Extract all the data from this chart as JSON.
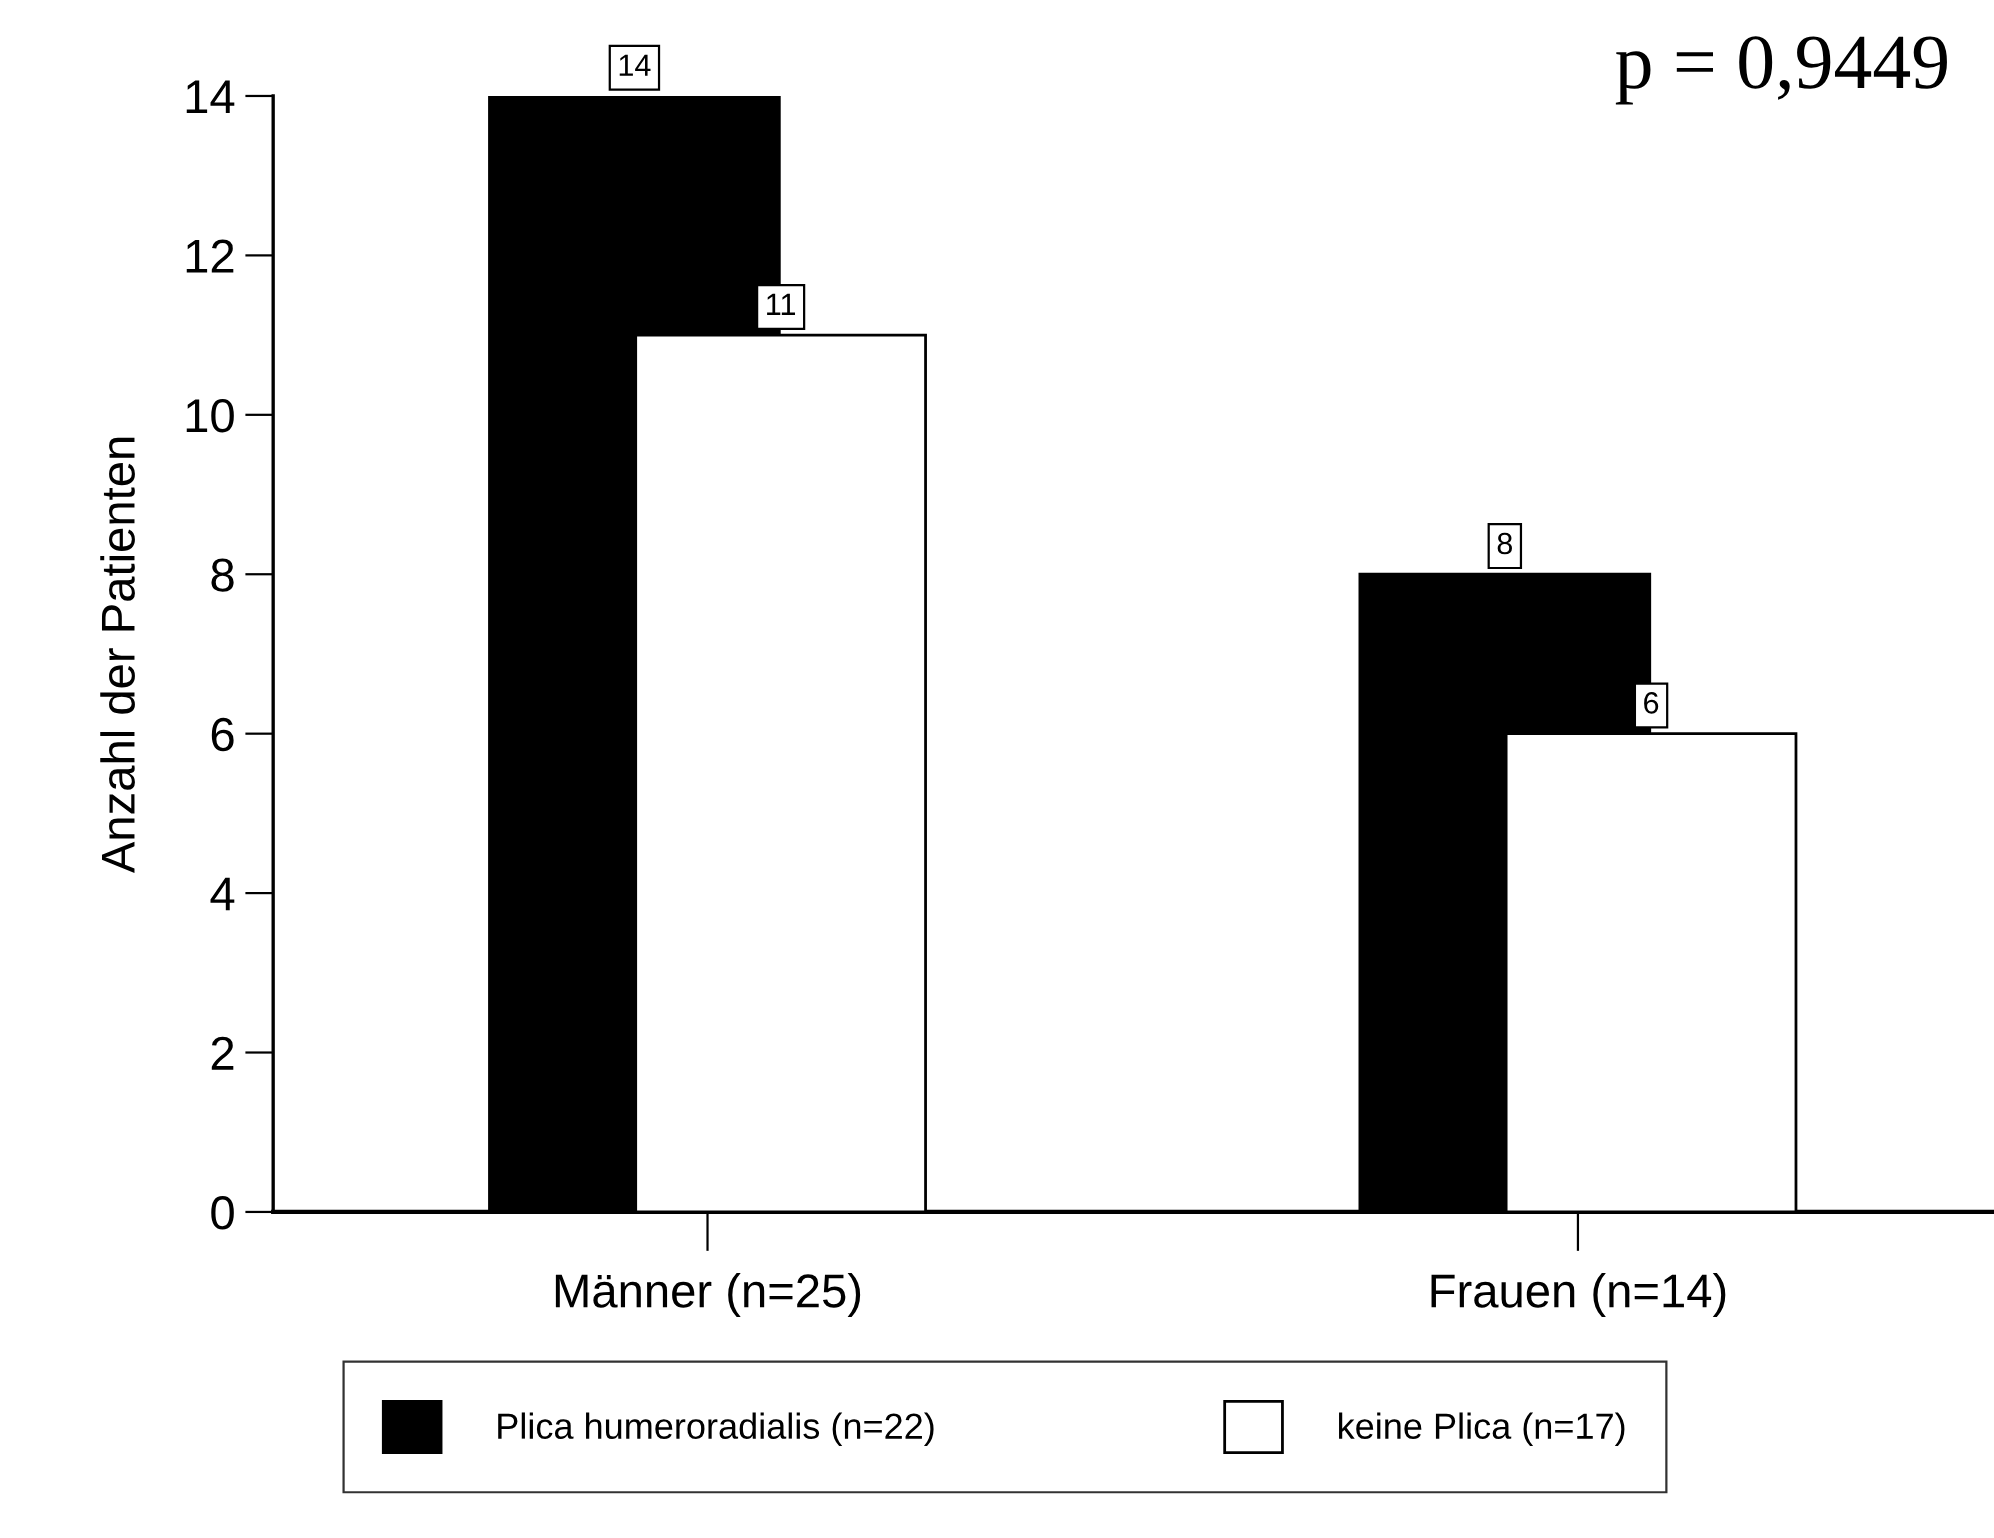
{
  "chart_data": {
    "type": "bar",
    "ylabel": "Anzahl der Patienten",
    "categories": [
      "Männer (n=25)",
      "Frauen (n=14)"
    ],
    "series": [
      {
        "name": "Plica humeroradialis (n=22)",
        "color": "#000000",
        "values": [
          14,
          8
        ]
      },
      {
        "name": "keine Plica (n=17)",
        "color": "#ffffff",
        "values": [
          11,
          6
        ]
      }
    ],
    "ylim": [
      0,
      14
    ],
    "yticks": [
      0,
      2,
      4,
      6,
      8,
      10,
      12,
      14
    ],
    "data_labels": true,
    "legend": "bottom",
    "annotations": [
      "p = 0,9449"
    ]
  }
}
